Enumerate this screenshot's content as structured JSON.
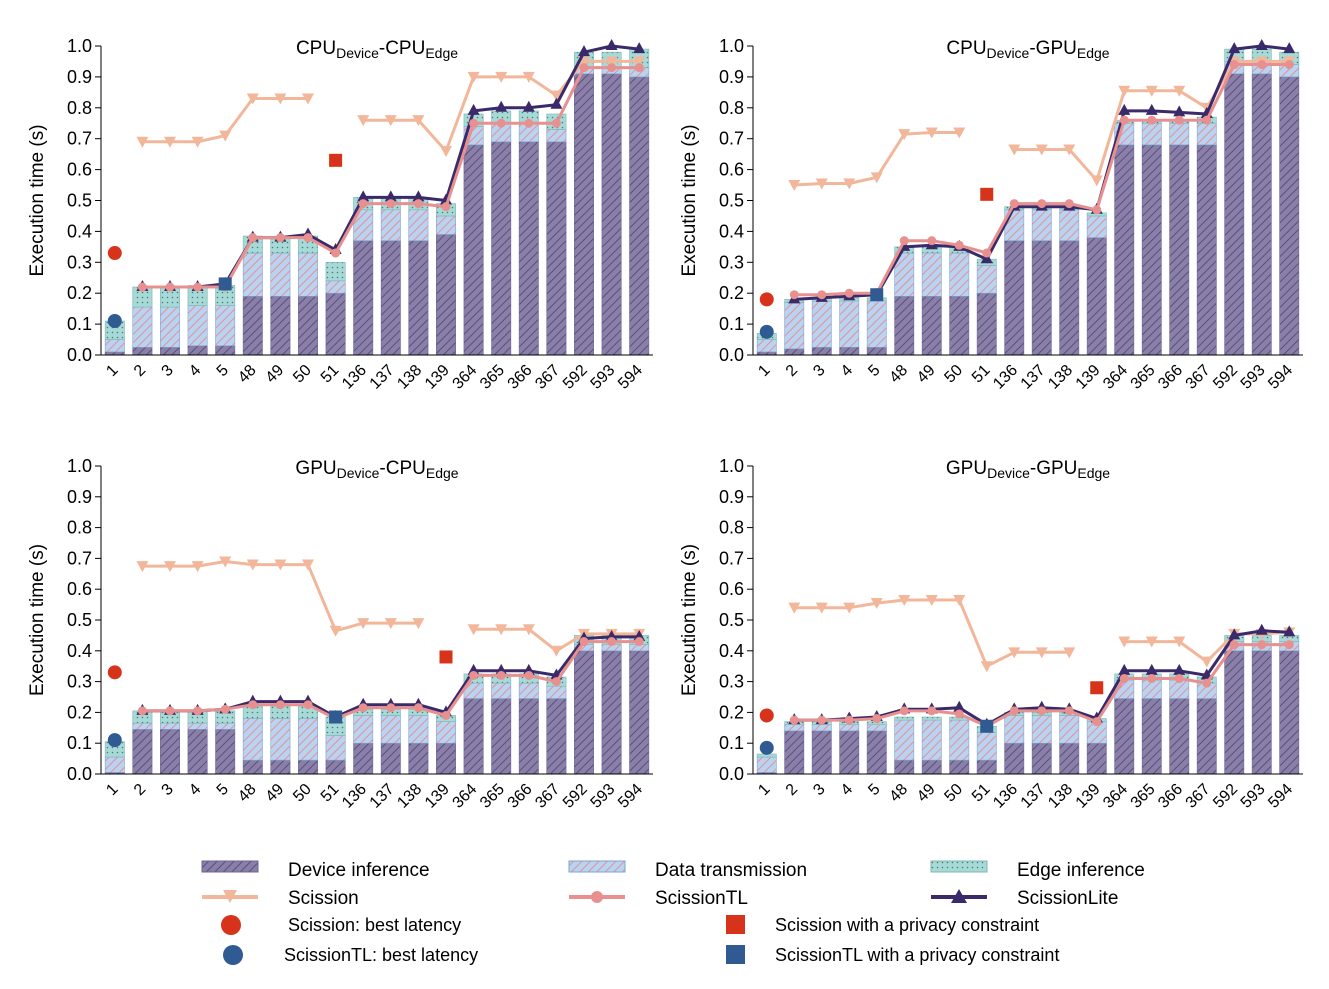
{
  "figure": {
    "panel_order": [
      "CPU-CPU",
      "CPU-GPU",
      "GPU-CPU",
      "GPU-GPU"
    ]
  },
  "colors": {
    "device": "#8a7fa8",
    "device_stripe": "#5a4f7a",
    "transmission": "#b9d4f0",
    "transmission_stripe": "#e58f9a",
    "edge": "#a7d9d6",
    "edge_dot": "#4a7c7f",
    "scission": "#f2b79a",
    "scissiontl": "#e8908f",
    "scissionlite": "#3a2a6a",
    "best_scission": "#d7321a",
    "best_scissiontl": "#2f5a92"
  },
  "legend": {
    "device_inference": "Device inference",
    "data_transmission": "Data transmission",
    "edge_inference": "Edge inference",
    "scission": "Scission",
    "scissiontl": "ScissionTL",
    "scissionlite": "ScissionLite",
    "scission_best": "Scission: best latency",
    "scission_privacy": "Scission with a privacy constraint",
    "scissiontl_best": "ScissionTL: best latency",
    "scissiontl_privacy": "ScissionTL with a privacy constraint"
  },
  "chart_data": [
    {
      "type": "bar",
      "title": {
        "a": "CPU",
        "a_sub": "Device",
        "sep": "-",
        "b": "CPU",
        "b_sub": "Edge"
      },
      "ylabel": "Execution time (s)",
      "ylim": [
        0,
        1.0
      ],
      "yticks": [
        "0.0",
        "0.1",
        "0.2",
        "0.3",
        "0.4",
        "0.5",
        "0.6",
        "0.7",
        "0.8",
        "0.9",
        "1.0"
      ],
      "categories": [
        "1",
        "2",
        "3",
        "4",
        "5",
        "48",
        "49",
        "50",
        "51",
        "136",
        "137",
        "138",
        "139",
        "364",
        "365",
        "366",
        "367",
        "592",
        "593",
        "594"
      ],
      "device_inference": [
        0.01,
        0.025,
        0.025,
        0.03,
        0.03,
        0.19,
        0.19,
        0.19,
        0.2,
        0.37,
        0.37,
        0.37,
        0.39,
        0.68,
        0.69,
        0.69,
        0.69,
        0.91,
        0.91,
        0.9
      ],
      "data_transmission": [
        0.04,
        0.13,
        0.13,
        0.13,
        0.13,
        0.14,
        0.14,
        0.14,
        0.04,
        0.1,
        0.1,
        0.1,
        0.06,
        0.06,
        0.06,
        0.06,
        0.04,
        0.02,
        0.02,
        0.03
      ],
      "edge_inference": [
        0.06,
        0.065,
        0.065,
        0.065,
        0.065,
        0.055,
        0.05,
        0.055,
        0.06,
        0.04,
        0.04,
        0.04,
        0.04,
        0.04,
        0.04,
        0.04,
        0.05,
        0.05,
        0.05,
        0.06
      ],
      "scission": [
        null,
        0.69,
        0.69,
        0.69,
        0.71,
        0.83,
        0.83,
        0.83,
        null,
        0.76,
        0.76,
        0.76,
        0.66,
        0.9,
        0.9,
        0.9,
        0.84,
        0.95,
        0.95,
        0.95
      ],
      "scissiontl": [
        null,
        0.22,
        0.22,
        0.22,
        0.22,
        0.38,
        0.38,
        0.38,
        0.33,
        0.49,
        0.49,
        0.49,
        0.48,
        0.75,
        0.75,
        0.75,
        0.75,
        0.93,
        0.93,
        0.93
      ],
      "scissionlite": [
        null,
        0.22,
        0.22,
        0.22,
        0.23,
        0.38,
        0.38,
        0.39,
        0.34,
        0.51,
        0.51,
        0.51,
        0.5,
        0.79,
        0.8,
        0.8,
        0.81,
        0.98,
        1.0,
        0.99
      ],
      "scission_best": {
        "x": "1",
        "y": 0.33
      },
      "scissiontl_best": {
        "x": "1",
        "y": 0.11
      },
      "scission_privacy": {
        "x": "51",
        "y": 0.63
      },
      "scissiontl_privacy": {
        "x": "5",
        "y": 0.23
      }
    },
    {
      "type": "bar",
      "title": {
        "a": "CPU",
        "a_sub": "Device",
        "sep": "-",
        "b": "GPU",
        "b_sub": "Edge"
      },
      "ylabel": "Execution time (s)",
      "ylim": [
        0,
        1.0
      ],
      "yticks": [
        "0.0",
        "0.1",
        "0.2",
        "0.3",
        "0.4",
        "0.5",
        "0.6",
        "0.7",
        "0.8",
        "0.9",
        "1.0"
      ],
      "categories": [
        "1",
        "2",
        "3",
        "4",
        "5",
        "48",
        "49",
        "50",
        "51",
        "136",
        "137",
        "138",
        "139",
        "364",
        "365",
        "366",
        "367",
        "592",
        "593",
        "594"
      ],
      "device_inference": [
        0.01,
        0.02,
        0.025,
        0.025,
        0.025,
        0.19,
        0.19,
        0.19,
        0.2,
        0.37,
        0.37,
        0.37,
        0.38,
        0.68,
        0.68,
        0.68,
        0.68,
        0.91,
        0.91,
        0.9
      ],
      "data_transmission": [
        0.04,
        0.15,
        0.15,
        0.15,
        0.15,
        0.14,
        0.14,
        0.14,
        0.09,
        0.1,
        0.1,
        0.1,
        0.07,
        0.07,
        0.07,
        0.07,
        0.07,
        0.04,
        0.04,
        0.04
      ],
      "edge_inference": [
        0.02,
        0.01,
        0.01,
        0.01,
        0.01,
        0.02,
        0.02,
        0.02,
        0.02,
        0.01,
        0.01,
        0.01,
        0.01,
        0.01,
        0.01,
        0.01,
        0.02,
        0.04,
        0.04,
        0.04
      ],
      "scission": [
        null,
        0.55,
        0.555,
        0.555,
        0.575,
        0.715,
        0.72,
        0.72,
        null,
        0.665,
        0.665,
        0.665,
        0.565,
        0.855,
        0.855,
        0.855,
        0.8,
        0.95,
        0.95,
        0.95
      ],
      "scissiontl": [
        null,
        0.195,
        0.195,
        0.2,
        0.2,
        0.37,
        0.37,
        0.355,
        0.33,
        0.49,
        0.49,
        0.49,
        0.47,
        0.76,
        0.76,
        0.76,
        0.76,
        0.94,
        0.94,
        0.94
      ],
      "scissionlite": [
        null,
        0.18,
        0.185,
        0.19,
        0.195,
        0.35,
        0.355,
        0.35,
        0.31,
        0.48,
        0.48,
        0.48,
        0.47,
        0.79,
        0.79,
        0.785,
        0.78,
        0.99,
        1.0,
        0.99
      ],
      "scission_best": {
        "x": "1",
        "y": 0.18
      },
      "scissiontl_best": {
        "x": "1",
        "y": 0.075
      },
      "scission_privacy": {
        "x": "51",
        "y": 0.52
      },
      "scissiontl_privacy": {
        "x": "5",
        "y": 0.195
      }
    },
    {
      "type": "bar",
      "title": {
        "a": "GPU",
        "a_sub": "Device",
        "sep": "-",
        "b": "CPU",
        "b_sub": "Edge"
      },
      "ylabel": "Execution time (s)",
      "ylim": [
        0,
        1.0
      ],
      "yticks": [
        "0.0",
        "0.1",
        "0.2",
        "0.3",
        "0.4",
        "0.5",
        "0.6",
        "0.7",
        "0.8",
        "0.9",
        "1.0"
      ],
      "categories": [
        "1",
        "2",
        "3",
        "4",
        "5",
        "48",
        "49",
        "50",
        "51",
        "136",
        "137",
        "138",
        "139",
        "364",
        "365",
        "366",
        "367",
        "592",
        "593",
        "594"
      ],
      "device_inference": [
        0.005,
        0.145,
        0.145,
        0.145,
        0.145,
        0.045,
        0.045,
        0.045,
        0.045,
        0.1,
        0.1,
        0.1,
        0.1,
        0.245,
        0.245,
        0.245,
        0.245,
        0.4,
        0.4,
        0.4
      ],
      "data_transmission": [
        0.05,
        0.02,
        0.02,
        0.02,
        0.02,
        0.135,
        0.135,
        0.135,
        0.08,
        0.09,
        0.09,
        0.09,
        0.07,
        0.05,
        0.05,
        0.05,
        0.04,
        0.02,
        0.02,
        0.02
      ],
      "edge_inference": [
        0.05,
        0.04,
        0.04,
        0.04,
        0.04,
        0.04,
        0.04,
        0.04,
        0.06,
        0.02,
        0.02,
        0.02,
        0.02,
        0.03,
        0.03,
        0.03,
        0.03,
        0.03,
        0.03,
        0.03
      ],
      "scission": [
        null,
        0.675,
        0.675,
        0.675,
        0.69,
        0.68,
        0.68,
        0.68,
        0.465,
        0.49,
        0.49,
        0.49,
        null,
        0.47,
        0.47,
        0.47,
        0.4,
        0.455,
        0.455,
        0.455
      ],
      "scissiontl": [
        null,
        0.205,
        0.205,
        0.205,
        0.21,
        0.225,
        0.225,
        0.225,
        0.18,
        0.215,
        0.215,
        0.215,
        0.19,
        0.32,
        0.32,
        0.32,
        0.3,
        0.43,
        0.43,
        0.43
      ],
      "scissionlite": [
        null,
        0.205,
        0.205,
        0.205,
        0.21,
        0.235,
        0.235,
        0.235,
        0.185,
        0.225,
        0.225,
        0.225,
        0.2,
        0.335,
        0.335,
        0.335,
        0.32,
        0.44,
        0.445,
        0.445
      ],
      "scission_best": {
        "x": "1",
        "y": 0.33
      },
      "scissiontl_best": {
        "x": "1",
        "y": 0.11
      },
      "scission_privacy": {
        "x": "139",
        "y": 0.38
      },
      "scissiontl_privacy": {
        "x": "51",
        "y": 0.185
      }
    },
    {
      "type": "bar",
      "title": {
        "a": "GPU",
        "a_sub": "Device",
        "sep": "-",
        "b": "GPU",
        "b_sub": "Edge"
      },
      "ylabel": "Execution time (s)",
      "ylim": [
        0,
        1.0
      ],
      "yticks": [
        "0.0",
        "0.1",
        "0.2",
        "0.3",
        "0.4",
        "0.5",
        "0.6",
        "0.7",
        "0.8",
        "0.9",
        "1.0"
      ],
      "categories": [
        "1",
        "2",
        "3",
        "4",
        "5",
        "48",
        "49",
        "50",
        "51",
        "136",
        "137",
        "138",
        "139",
        "364",
        "365",
        "366",
        "367",
        "592",
        "593",
        "594"
      ],
      "device_inference": [
        0.005,
        0.14,
        0.14,
        0.14,
        0.14,
        0.045,
        0.045,
        0.045,
        0.045,
        0.1,
        0.1,
        0.1,
        0.1,
        0.245,
        0.245,
        0.245,
        0.245,
        0.4,
        0.4,
        0.4
      ],
      "data_transmission": [
        0.05,
        0.02,
        0.02,
        0.02,
        0.02,
        0.13,
        0.13,
        0.13,
        0.09,
        0.09,
        0.09,
        0.09,
        0.07,
        0.06,
        0.06,
        0.06,
        0.05,
        0.03,
        0.03,
        0.03
      ],
      "edge_inference": [
        0.01,
        0.01,
        0.01,
        0.01,
        0.01,
        0.01,
        0.01,
        0.01,
        0.02,
        0.01,
        0.01,
        0.01,
        0.01,
        0.02,
        0.02,
        0.02,
        0.02,
        0.02,
        0.02,
        0.02
      ],
      "scission": [
        null,
        0.54,
        0.54,
        0.54,
        0.555,
        0.565,
        0.565,
        0.565,
        0.35,
        0.395,
        0.395,
        0.395,
        null,
        0.43,
        0.43,
        0.43,
        0.365,
        0.455,
        0.455,
        0.46
      ],
      "scissiontl": [
        null,
        0.175,
        0.175,
        0.175,
        0.18,
        0.205,
        0.205,
        0.195,
        0.155,
        0.205,
        0.205,
        0.205,
        0.17,
        0.31,
        0.31,
        0.31,
        0.295,
        0.42,
        0.42,
        0.42
      ],
      "scissionlite": [
        null,
        0.175,
        0.175,
        0.18,
        0.185,
        0.21,
        0.21,
        0.215,
        0.16,
        0.21,
        0.215,
        0.21,
        0.18,
        0.335,
        0.335,
        0.335,
        0.32,
        0.45,
        0.465,
        0.46
      ],
      "scission_best": {
        "x": "1",
        "y": 0.19
      },
      "scissiontl_best": {
        "x": "1",
        "y": 0.085
      },
      "scission_privacy": {
        "x": "139",
        "y": 0.28
      },
      "scissiontl_privacy": {
        "x": "51",
        "y": 0.155
      }
    }
  ]
}
